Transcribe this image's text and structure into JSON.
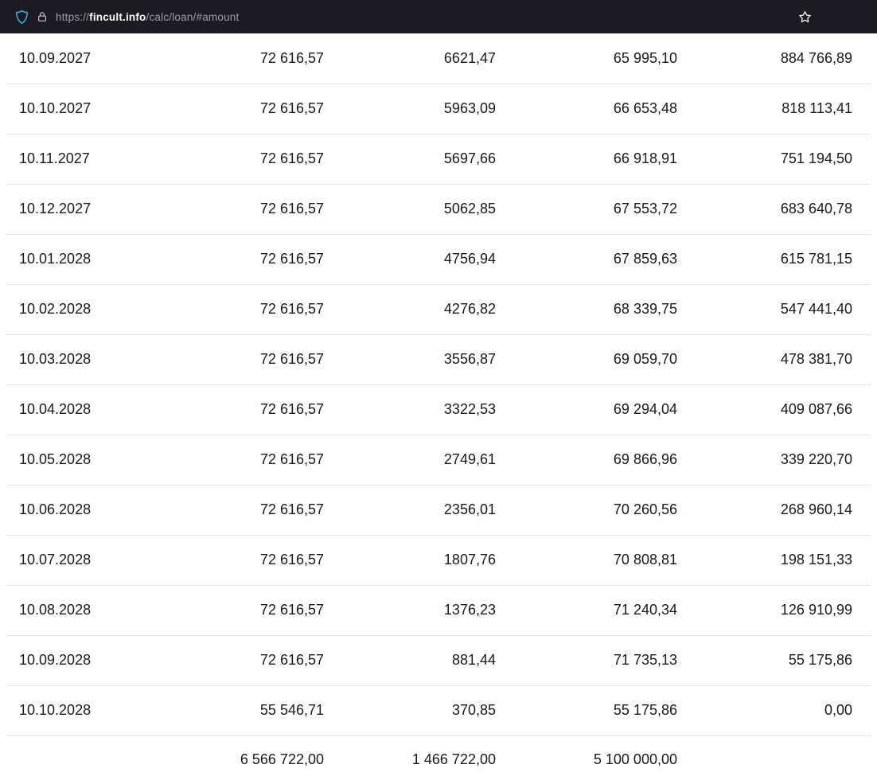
{
  "browser": {
    "url": {
      "scheme": "https://",
      "domain": "fincult.info",
      "path": "/calc/loan/#amount"
    },
    "icons": {
      "shield": "tracking-protection-shield-icon",
      "lock": "padlock-icon",
      "star": "bookmark-star-icon"
    },
    "accent_colors": {
      "bar_bg": "#1c1b22",
      "shield": "#35b0e0",
      "lock": "#b6b6be",
      "url_dim": "#9d9da4",
      "url_domain": "#fbfbfe"
    }
  },
  "table": {
    "rows": [
      [
        "10.09.2027",
        "72 616,57",
        "6621,47",
        "65 995,10",
        "884 766,89"
      ],
      [
        "10.10.2027",
        "72 616,57",
        "5963,09",
        "66 653,48",
        "818 113,41"
      ],
      [
        "10.11.2027",
        "72 616,57",
        "5697,66",
        "66 918,91",
        "751 194,50"
      ],
      [
        "10.12.2027",
        "72 616,57",
        "5062,85",
        "67 553,72",
        "683 640,78"
      ],
      [
        "10.01.2028",
        "72 616,57",
        "4756,94",
        "67 859,63",
        "615 781,15"
      ],
      [
        "10.02.2028",
        "72 616,57",
        "4276,82",
        "68 339,75",
        "547 441,40"
      ],
      [
        "10.03.2028",
        "72 616,57",
        "3556,87",
        "69 059,70",
        "478 381,70"
      ],
      [
        "10.04.2028",
        "72 616,57",
        "3322,53",
        "69 294,04",
        "409 087,66"
      ],
      [
        "10.05.2028",
        "72 616,57",
        "2749,61",
        "69 866,96",
        "339 220,70"
      ],
      [
        "10.06.2028",
        "72 616,57",
        "2356,01",
        "70 260,56",
        "268 960,14"
      ],
      [
        "10.07.2028",
        "72 616,57",
        "1807,76",
        "70 808,81",
        "198 151,33"
      ],
      [
        "10.08.2028",
        "72 616,57",
        "1376,23",
        "71 240,34",
        "126 910,99"
      ],
      [
        "10.09.2028",
        "72 616,57",
        "881,44",
        "71 735,13",
        "55 175,86"
      ],
      [
        "10.10.2028",
        "55 546,71",
        "370,85",
        "55 175,86",
        "0,00"
      ]
    ],
    "totals": [
      "",
      "6 566 722,00",
      "1 466 722,00",
      "5 100 000,00",
      ""
    ],
    "row_border_color": "#e7e7e7",
    "text_color": "#1a1a1a"
  }
}
